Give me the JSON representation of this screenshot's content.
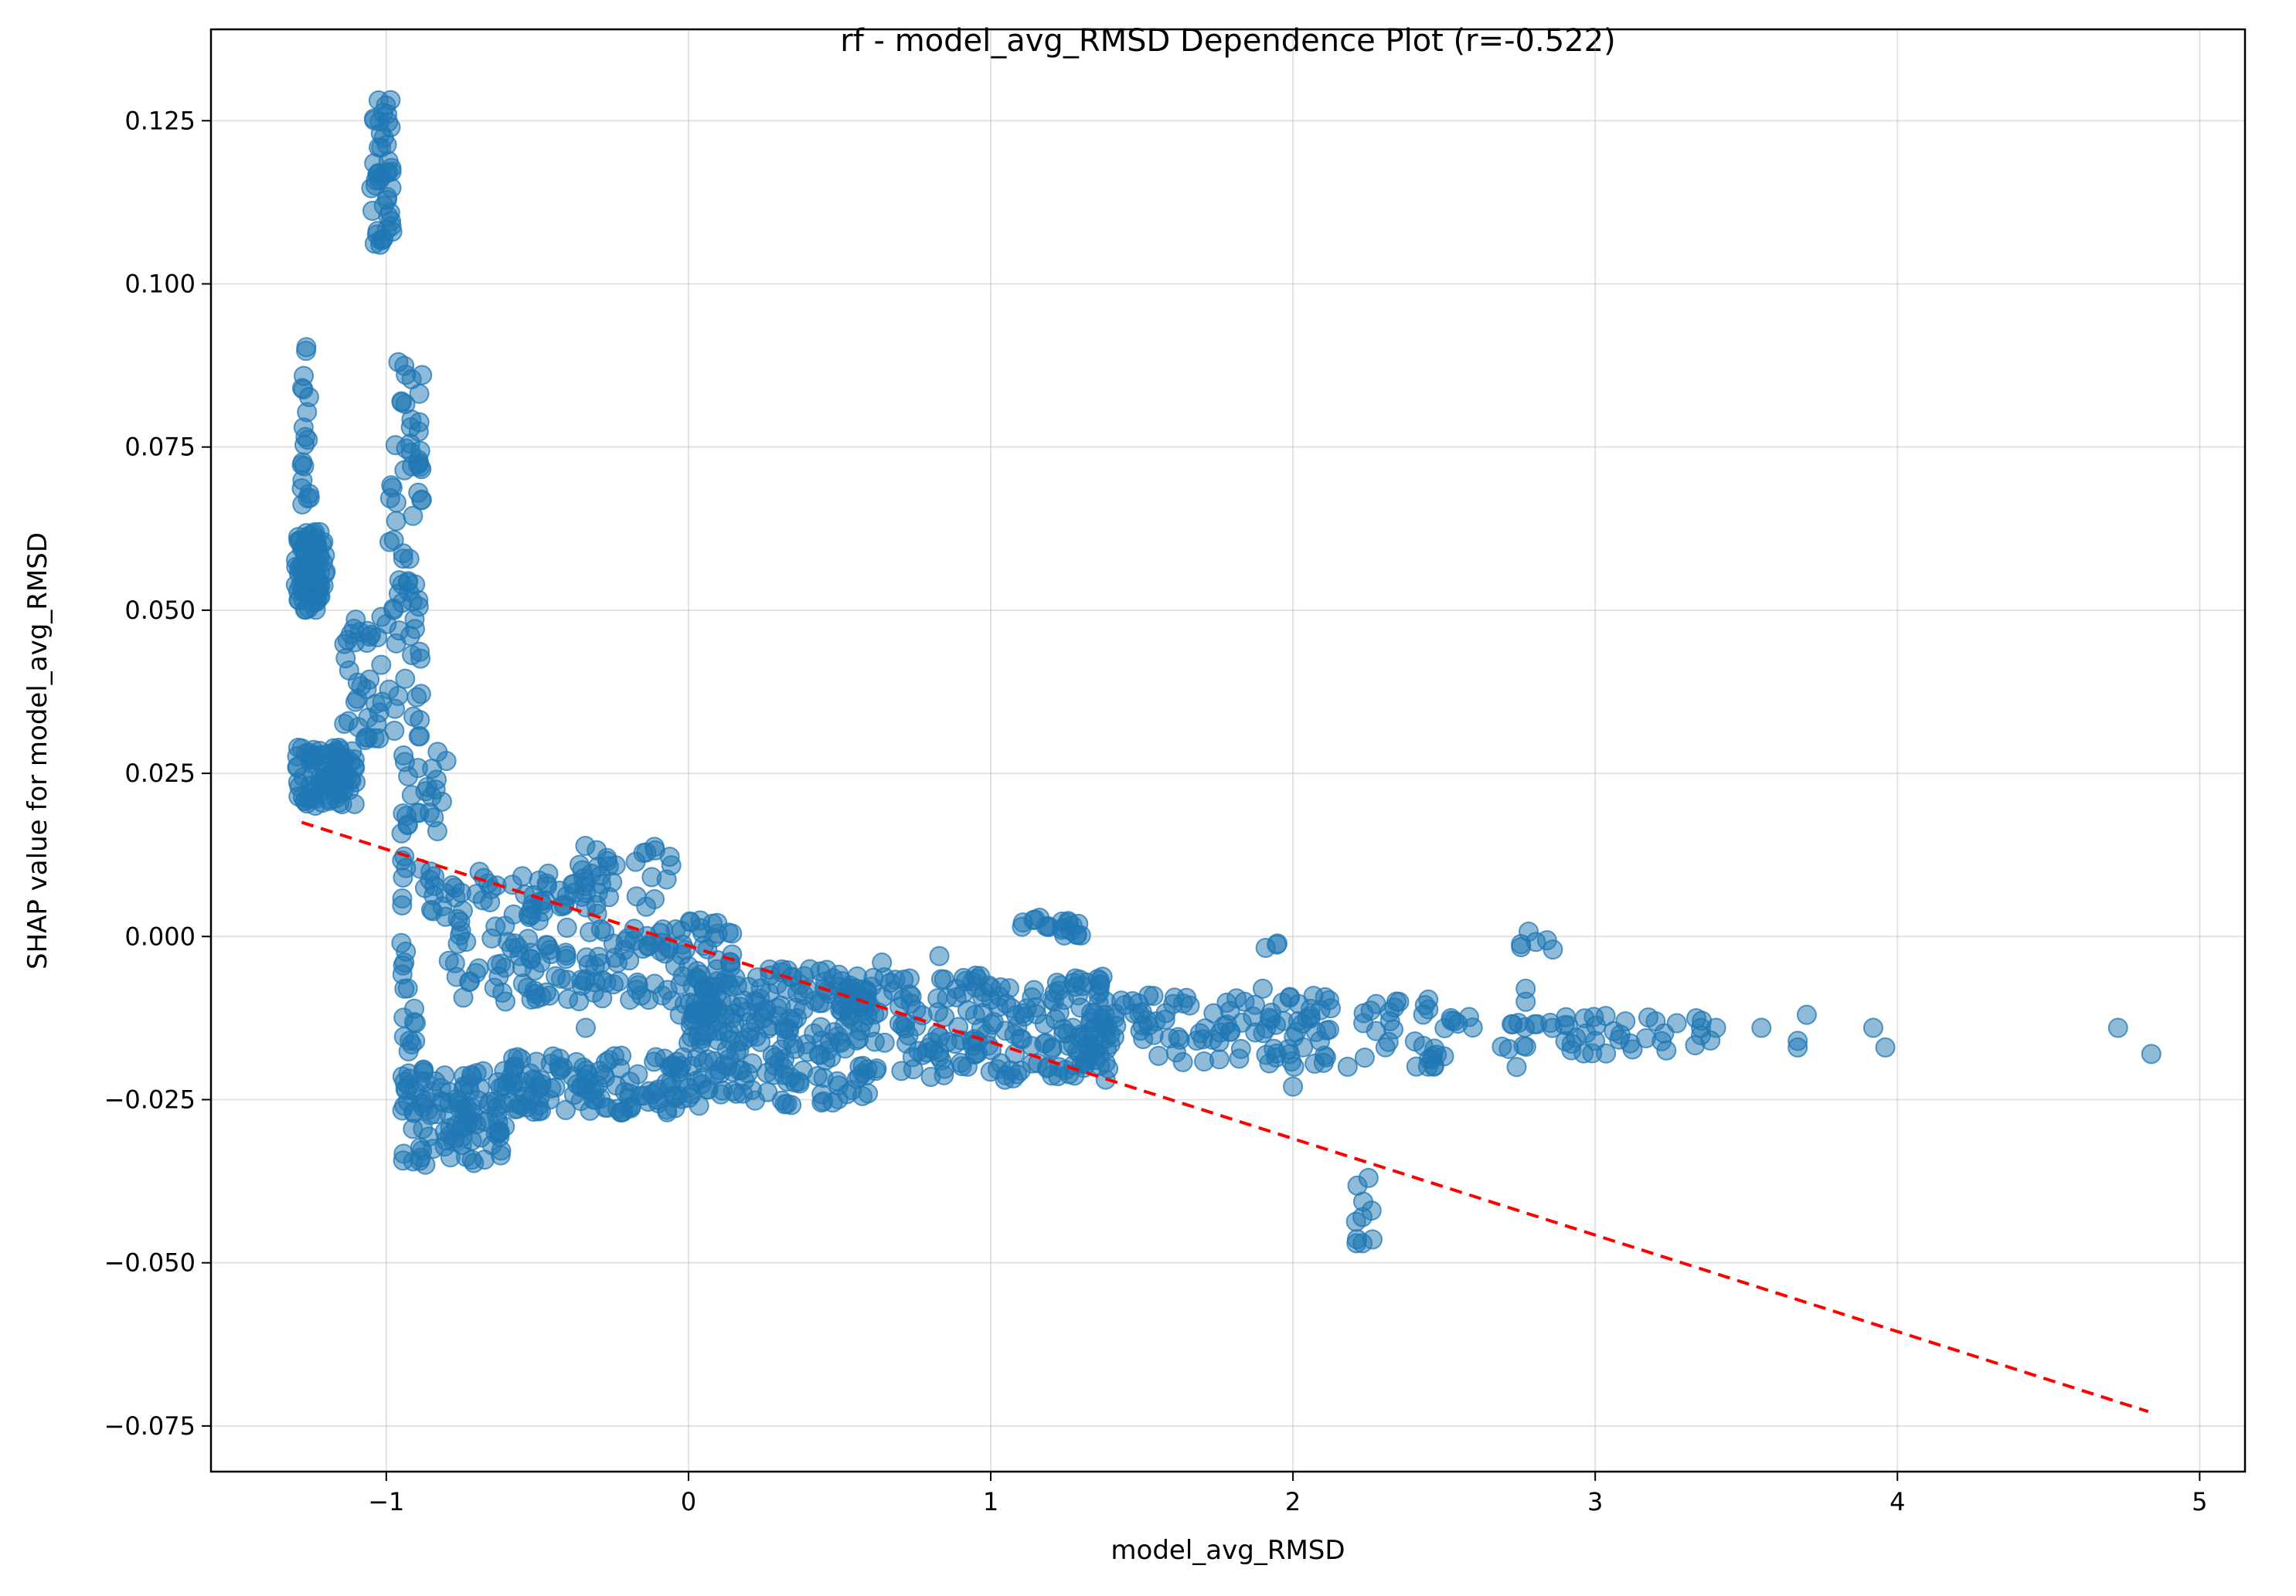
{
  "chart_data": {
    "type": "scatter",
    "title": "rf - model_avg_RMSD Dependence Plot (r=-0.522)",
    "xlabel": "model_avg_RMSD",
    "ylabel": "SHAP value for model_avg_RMSD",
    "xlim": [
      -1.58,
      5.15
    ],
    "ylim": [
      -0.082,
      0.139
    ],
    "x_ticks": [
      -1,
      0,
      1,
      2,
      3,
      4,
      5
    ],
    "x_tick_labels": [
      "−1",
      "0",
      "1",
      "2",
      "3",
      "4",
      "5"
    ],
    "y_ticks": [
      -0.075,
      -0.05,
      -0.025,
      0.0,
      0.025,
      0.05,
      0.075,
      0.1,
      0.125
    ],
    "y_tick_labels": [
      "−0.075",
      "−0.050",
      "−0.025",
      "0.000",
      "0.025",
      "0.050",
      "0.075",
      "0.100",
      "0.125"
    ],
    "grid": true,
    "point_color": "#1f77b4",
    "trend_color": "#ff0000",
    "trend_line": {
      "x": [
        -1.28,
        4.83
      ],
      "y": [
        0.0175,
        -0.0728
      ]
    },
    "clusters": [
      {
        "x": [
          -1.3,
          -1.2
        ],
        "y": [
          0.05,
          0.062
        ],
        "n": 90
      },
      {
        "x": [
          -1.3,
          -1.1
        ],
        "y": [
          0.02,
          0.029
        ],
        "n": 90
      },
      {
        "x": [
          -1.28,
          -1.25
        ],
        "y": [
          0.065,
          0.092
        ],
        "n": 20
      },
      {
        "x": [
          -1.05,
          -0.98
        ],
        "y": [
          0.106,
          0.129
        ],
        "n": 45
      },
      {
        "x": [
          -1.15,
          -1.0
        ],
        "y": [
          0.03,
          0.049
        ],
        "n": 35
      },
      {
        "x": [
          -1.0,
          -0.88
        ],
        "y": [
          0.03,
          0.088
        ],
        "n": 70
      },
      {
        "x": [
          -0.95,
          -0.75
        ],
        "y": [
          0.003,
          0.03
        ],
        "n": 45
      },
      {
        "x": [
          -0.95,
          -0.9
        ],
        "y": [
          -0.022,
          0.0
        ],
        "n": 15
      },
      {
        "x": [
          -0.95,
          -0.6
        ],
        "y": [
          -0.035,
          -0.02
        ],
        "n": 110
      },
      {
        "x": [
          -0.6,
          0.0
        ],
        "y": [
          -0.027,
          -0.018
        ],
        "n": 120
      },
      {
        "x": [
          -0.8,
          -0.4
        ],
        "y": [
          -0.01,
          0.01
        ],
        "n": 90
      },
      {
        "x": [
          -0.4,
          -0.05
        ],
        "y": [
          -0.01,
          0.014
        ],
        "n": 90
      },
      {
        "x": [
          -0.05,
          0.15
        ],
        "y": [
          -0.012,
          0.003
        ],
        "n": 50
      },
      {
        "x": [
          0.0,
          0.6
        ],
        "y": [
          -0.026,
          -0.005
        ],
        "n": 220
      },
      {
        "x": [
          0.5,
          1.4
        ],
        "y": [
          -0.022,
          -0.006
        ],
        "n": 220
      },
      {
        "x": [
          1.1,
          1.3
        ],
        "y": [
          0.0,
          0.003
        ],
        "n": 20
      },
      {
        "x": [
          1.3,
          2.5
        ],
        "y": [
          -0.02,
          -0.009
        ],
        "n": 140
      },
      {
        "x": [
          1.9,
          1.95
        ],
        "y": [
          -0.002,
          0.0
        ],
        "n": 3
      },
      {
        "x": [
          2.5,
          3.4
        ],
        "y": [
          -0.018,
          -0.012
        ],
        "n": 50
      },
      {
        "x": [
          2.75,
          2.85
        ],
        "y": [
          -0.002,
          0.001
        ],
        "n": 5
      },
      {
        "x": [
          2.2,
          2.27
        ],
        "y": [
          -0.047,
          -0.037
        ],
        "n": 5
      }
    ],
    "points": [
      {
        "x": -0.95,
        "y": -0.001
      },
      {
        "x": -0.94,
        "y": -0.004
      },
      {
        "x": -0.94,
        "y": -0.008
      },
      {
        "x": 2.21,
        "y": -0.047
      },
      {
        "x": 2.23,
        "y": -0.047
      },
      {
        "x": 2.23,
        "y": -0.043
      },
      {
        "x": 2.26,
        "y": -0.042
      },
      {
        "x": 2.25,
        "y": -0.037
      },
      {
        "x": 2.0,
        "y": -0.023
      },
      {
        "x": 2.74,
        "y": -0.02
      },
      {
        "x": 2.77,
        "y": -0.01
      },
      {
        "x": 2.77,
        "y": -0.008
      },
      {
        "x": 2.86,
        "y": -0.002
      },
      {
        "x": 3.0,
        "y": -0.016
      },
      {
        "x": 3.1,
        "y": -0.013
      },
      {
        "x": 3.2,
        "y": -0.013
      },
      {
        "x": 3.35,
        "y": -0.014
      },
      {
        "x": 3.4,
        "y": -0.014
      },
      {
        "x": 3.55,
        "y": -0.014
      },
      {
        "x": 3.67,
        "y": -0.016
      },
      {
        "x": 3.67,
        "y": -0.017
      },
      {
        "x": 3.7,
        "y": -0.012
      },
      {
        "x": 3.92,
        "y": -0.014
      },
      {
        "x": 3.96,
        "y": -0.017
      },
      {
        "x": 4.73,
        "y": -0.014
      },
      {
        "x": 4.84,
        "y": -0.018
      },
      {
        "x": 1.84,
        "y": -0.01
      },
      {
        "x": 1.9,
        "y": -0.008
      },
      {
        "x": -0.96,
        "y": 0.088
      },
      {
        "x": -0.95,
        "y": 0.082
      },
      {
        "x": -1.02,
        "y": 0.106
      },
      {
        "x": -0.98,
        "y": 0.108
      },
      {
        "x": 0.64,
        "y": -0.004
      },
      {
        "x": 0.83,
        "y": -0.003
      },
      {
        "x": 0.95,
        "y": -0.006
      },
      {
        "x": -0.34,
        "y": -0.014
      }
    ]
  }
}
